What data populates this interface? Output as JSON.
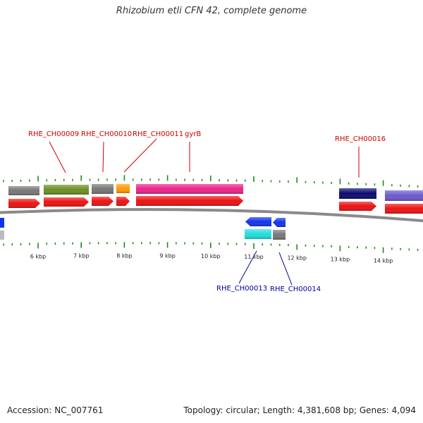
{
  "title": "Rhizobium etli CFN 42, complete genome",
  "footer": {
    "accession": "Accession: NC_007761",
    "summary": "Topology: circular; Length: 4,381,608 bp; Genes: 4,094"
  },
  "colors": {
    "forward_label": "#cc0000",
    "reverse_label": "#00009a",
    "tick": "#1e8a1e",
    "backbone": "#888888"
  },
  "scale": {
    "ticks": [
      {
        "label": "6 kbp",
        "kb": 6
      },
      {
        "label": "7 kbp",
        "kb": 7
      },
      {
        "label": "8 kbp",
        "kb": 8
      },
      {
        "label": "9 kbp",
        "kb": 9
      },
      {
        "label": "10 kbp",
        "kb": 10
      },
      {
        "label": "11 kbp",
        "kb": 11
      },
      {
        "label": "12 kbp",
        "kb": 12
      },
      {
        "label": "13 kbp",
        "kb": 13
      },
      {
        "label": "14 kbp",
        "kb": 14
      }
    ]
  },
  "gene_labels": [
    {
      "text": "RHE_CH00009",
      "strand": "forward"
    },
    {
      "text": "RHE_CH00010",
      "strand": "forward"
    },
    {
      "text": "RHE_CH00011",
      "strand": "forward"
    },
    {
      "text": "gyrB",
      "strand": "forward"
    },
    {
      "text": "RHE_CH00016",
      "strand": "forward"
    },
    {
      "text": "RHE_CH00013",
      "strand": "reverse"
    },
    {
      "text": "RHE_CH00014",
      "strand": "reverse"
    }
  ],
  "feature_colors": {
    "cds": "#ee1111",
    "gray": "#777777",
    "olive": "#6b8e23",
    "orange": "#ff9900",
    "pink": "#ee2288",
    "navy": "#0a0a6e",
    "slate": "#6a5acd",
    "blue": "#1133ee",
    "cyan": "#22dddd",
    "lightgray": "#bbbbbb"
  }
}
